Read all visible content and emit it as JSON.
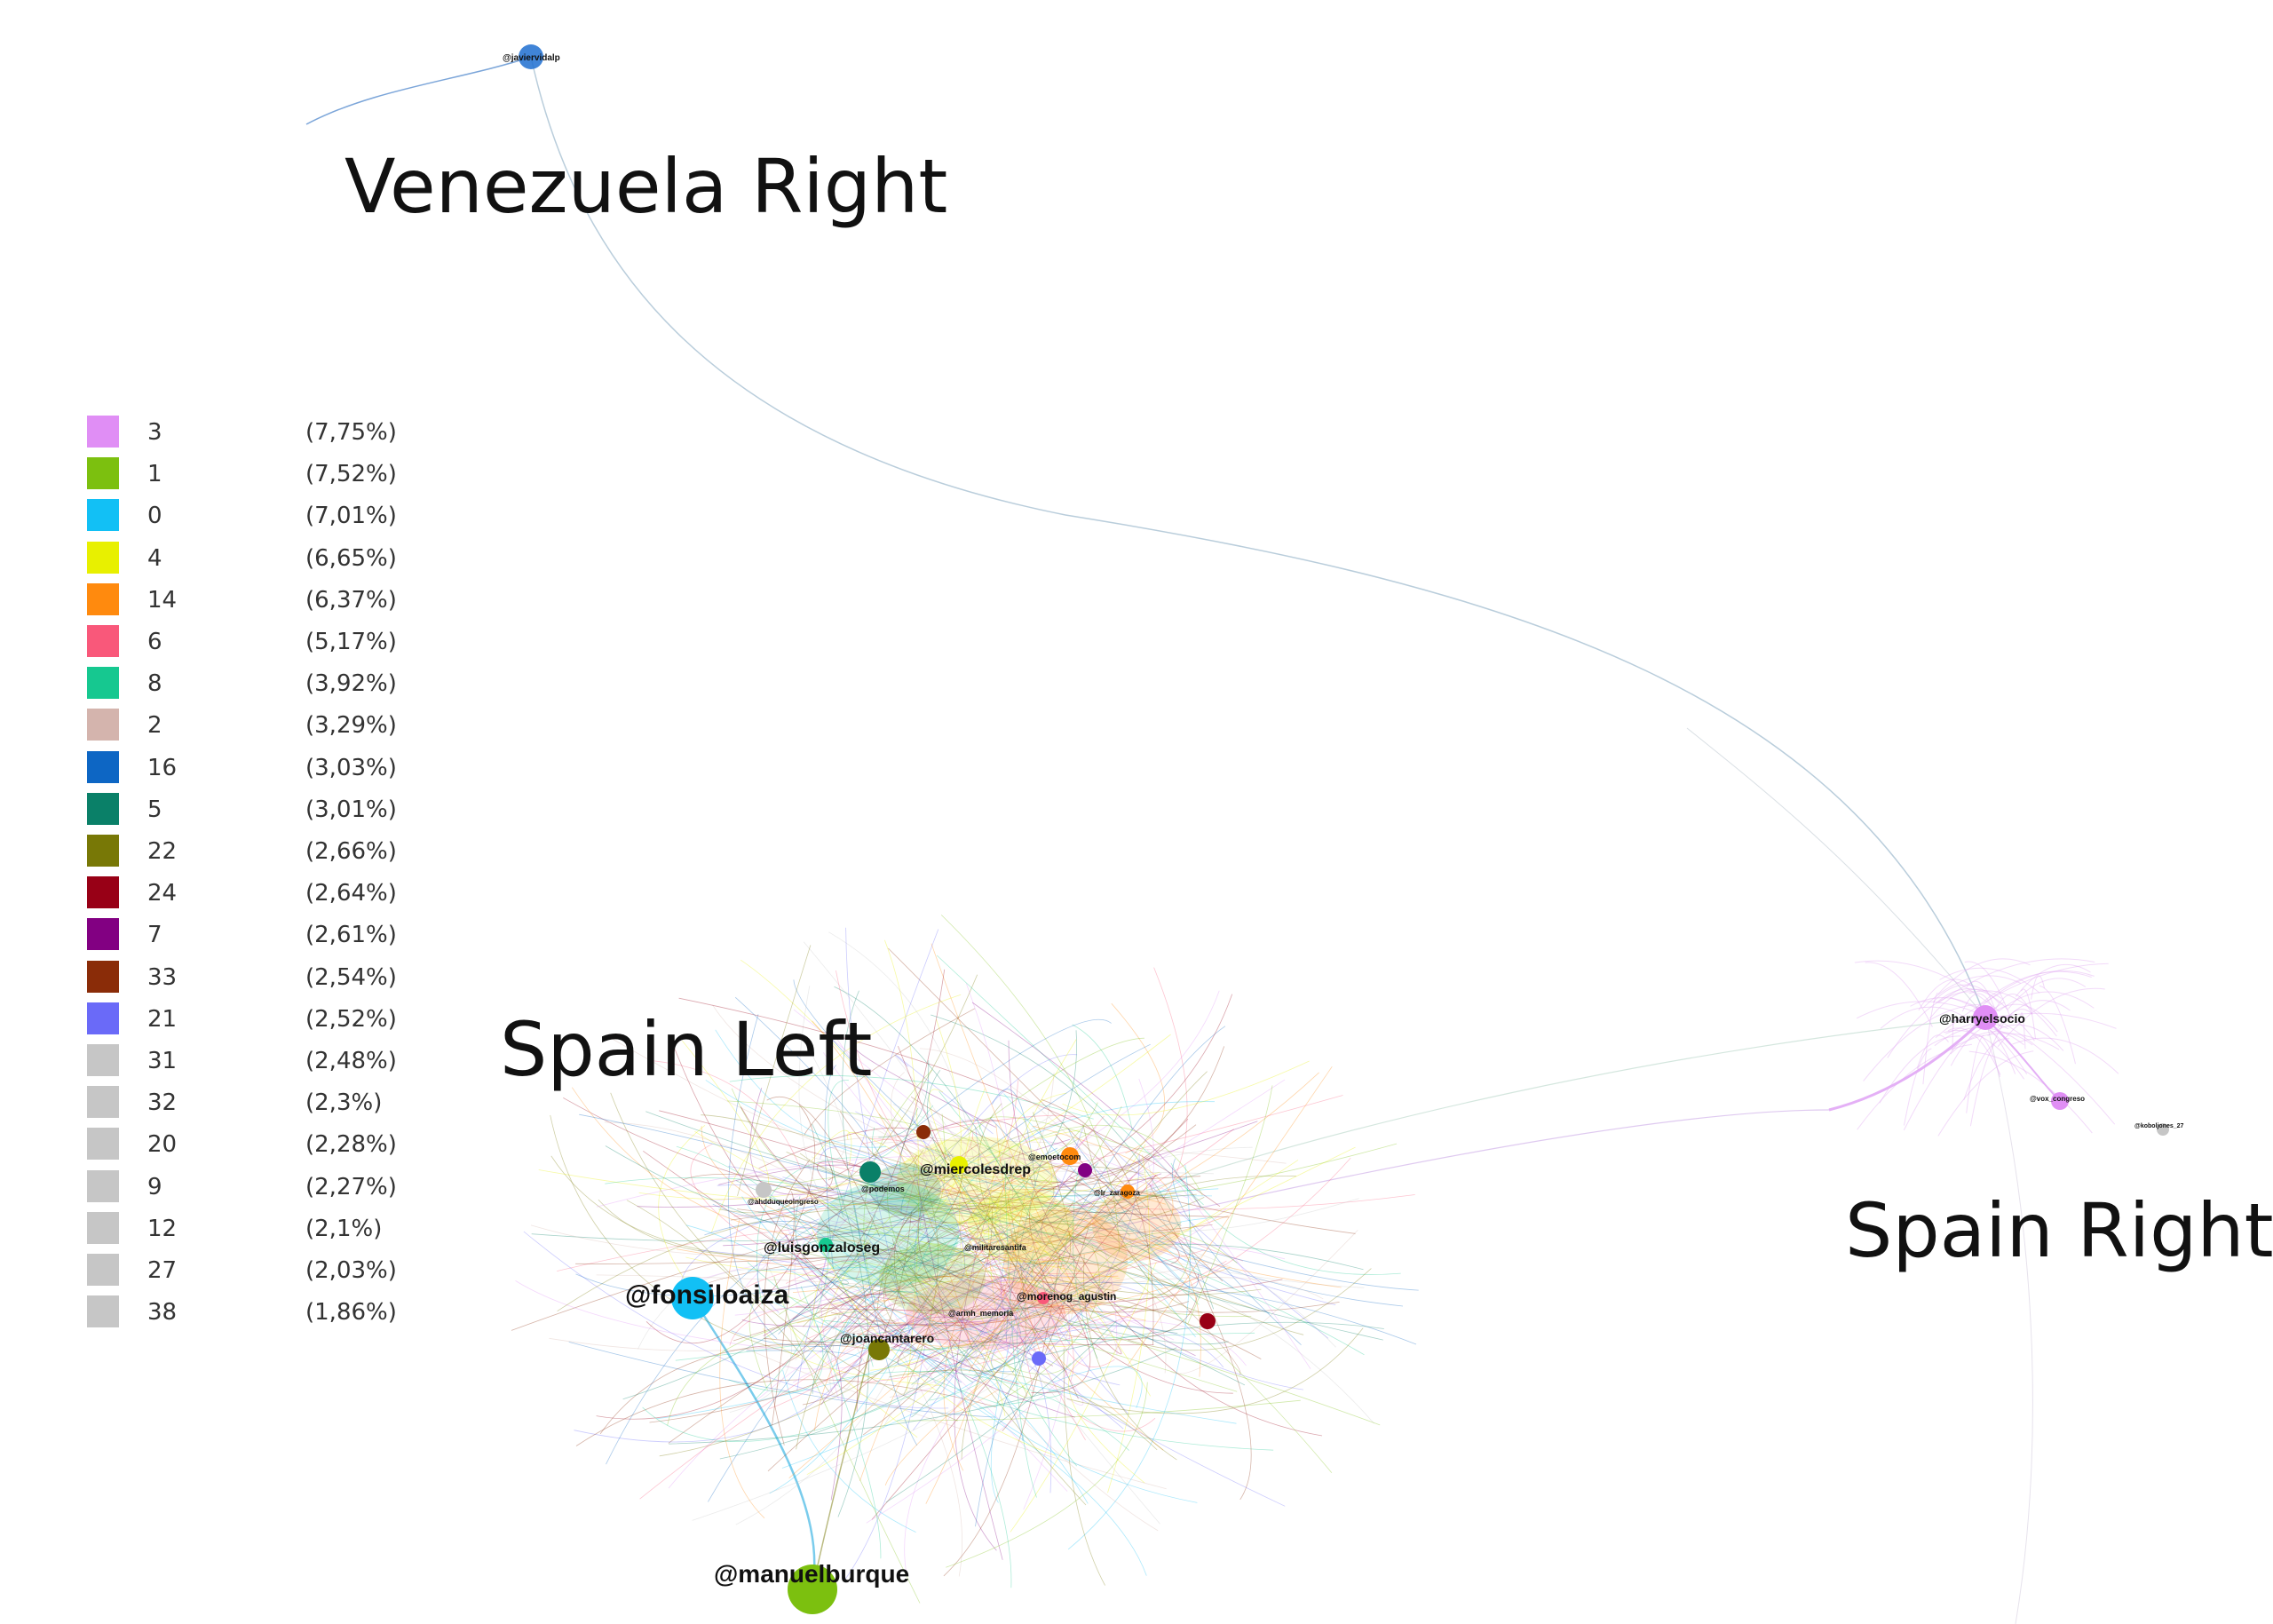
{
  "regions": {
    "venezuela_right": "Venezuela Right",
    "spain_left": "Spain Left",
    "spain_right": "Spain Right"
  },
  "legend": [
    {
      "id": "3",
      "pct": "(7,75%)",
      "color": "#e08ef5"
    },
    {
      "id": "1",
      "pct": "(7,52%)",
      "color": "#7cc00f"
    },
    {
      "id": "0",
      "pct": "(7,01%)",
      "color": "#12c0f5"
    },
    {
      "id": "4",
      "pct": "(6,65%)",
      "color": "#e8f000"
    },
    {
      "id": "14",
      "pct": "(6,37%)",
      "color": "#ff8a0e"
    },
    {
      "id": "6",
      "pct": "(5,17%)",
      "color": "#f9587a"
    },
    {
      "id": "8",
      "pct": "(3,92%)",
      "color": "#16c890"
    },
    {
      "id": "2",
      "pct": "(3,29%)",
      "color": "#d4b4ad"
    },
    {
      "id": "16",
      "pct": "(3,03%)",
      "color": "#0d66c4"
    },
    {
      "id": "5",
      "pct": "(3,01%)",
      "color": "#0a8068"
    },
    {
      "id": "22",
      "pct": "(2,66%)",
      "color": "#787806"
    },
    {
      "id": "24",
      "pct": "(2,64%)",
      "color": "#980016"
    },
    {
      "id": "7",
      "pct": "(2,61%)",
      "color": "#820082"
    },
    {
      "id": "33",
      "pct": "(2,54%)",
      "color": "#8a2c08"
    },
    {
      "id": "21",
      "pct": "(2,52%)",
      "color": "#6a6af8"
    },
    {
      "id": "31",
      "pct": "(2,48%)",
      "color": "#c6c6c6"
    },
    {
      "id": "32",
      "pct": "(2,3%)",
      "color": "#c6c6c6"
    },
    {
      "id": "20",
      "pct": "(2,28%)",
      "color": "#c6c6c6"
    },
    {
      "id": "9",
      "pct": "(2,27%)",
      "color": "#c6c6c6"
    },
    {
      "id": "12",
      "pct": "(2,1%)",
      "color": "#c6c6c6"
    },
    {
      "id": "27",
      "pct": "(2,03%)",
      "color": "#c6c6c6"
    },
    {
      "id": "38",
      "pct": "(1,86%)",
      "color": "#c6c6c6"
    }
  ],
  "nodes": {
    "javiervidalp": "@javiervidalp",
    "fonsiloaiza": "@fonsiloaiza",
    "manuelburque": "@manuelburque",
    "luisgonzaloseg": "@luisgonzaloseg",
    "miercolesdrep": "@miercolesdrep",
    "joancantarero": "@joancantarero",
    "morenog_agustin": "@morenog_agustin",
    "harryelsocio": "@harryelsocio",
    "vox_congreso": "@vox_congreso",
    "ahdduqueoingreso": "@ahdduqueoingreso",
    "podemos": "@podemos",
    "militaresantifa": "@militaresantifa",
    "armh_memoria": "@armh_memoria",
    "emoetocom": "@emoetocom",
    "lr_zaragoza": "@lr_zaragoza",
    "koboljones_27": "@koboljones_27"
  }
}
